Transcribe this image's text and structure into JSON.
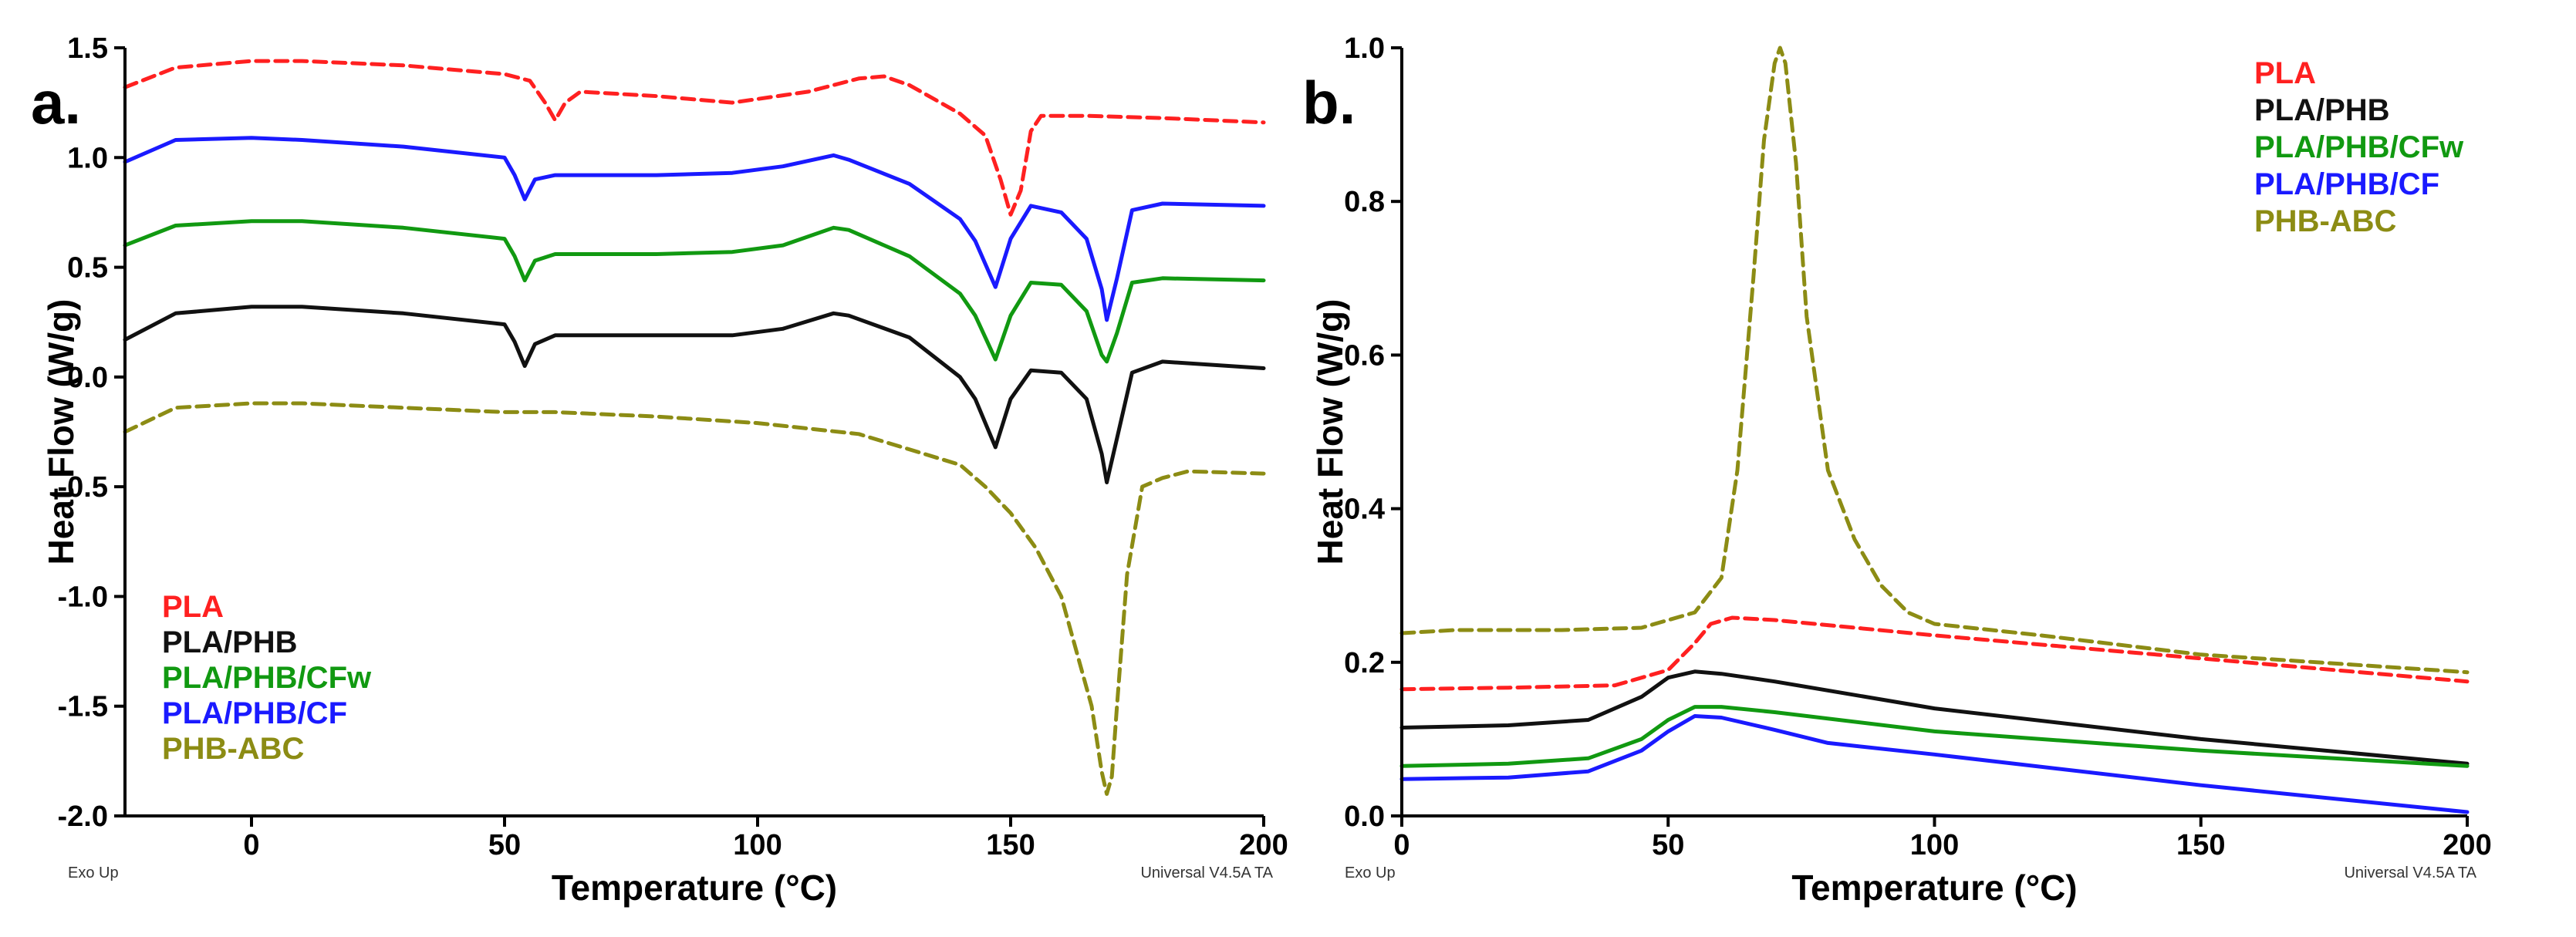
{
  "chart_data": [
    {
      "type": "line",
      "panel_label": "a.",
      "xlabel": "Temperature (°C)",
      "ylabel": "Heat Flow (W/g)",
      "xlim": [
        -25,
        200
      ],
      "ylim": [
        -2.0,
        1.5
      ],
      "xticks": [
        0,
        50,
        100,
        150,
        200
      ],
      "yticks": [
        -2.0,
        -1.5,
        -1.0,
        -0.5,
        0.0,
        0.5,
        1.0,
        1.5
      ],
      "xtick_labels": [
        "0",
        "50",
        "100",
        "150",
        "200"
      ],
      "ytick_labels": [
        "-2.0",
        "-1.5",
        "-1.0",
        "-0.5",
        "0.0",
        "0.5",
        "1.0",
        "1.5"
      ],
      "corner_left": "Exo Up",
      "corner_right": "Universal V4.5A TA",
      "legend_position": "bottom-left",
      "series": [
        {
          "name": "PLA",
          "color": "#ff2020",
          "dash": true,
          "x": [
            -25,
            -15,
            0,
            10,
            30,
            50,
            55,
            58,
            60,
            62,
            65,
            80,
            95,
            110,
            120,
            125,
            130,
            140,
            145,
            148,
            150,
            152,
            154,
            156,
            165,
            180,
            200
          ],
          "y": [
            1.32,
            1.41,
            1.44,
            1.44,
            1.42,
            1.38,
            1.35,
            1.25,
            1.17,
            1.25,
            1.3,
            1.28,
            1.25,
            1.3,
            1.36,
            1.37,
            1.33,
            1.2,
            1.1,
            0.9,
            0.74,
            0.85,
            1.12,
            1.19,
            1.19,
            1.18,
            1.16
          ]
        },
        {
          "name": "PLA/PHB",
          "color": "#111111",
          "dash": false,
          "x": [
            -25,
            -15,
            0,
            10,
            30,
            50,
            52,
            54,
            56,
            60,
            80,
            95,
            105,
            115,
            118,
            130,
            140,
            143,
            147,
            150,
            154,
            160,
            165,
            168,
            169,
            171,
            174,
            180,
            200
          ],
          "y": [
            0.17,
            0.29,
            0.32,
            0.32,
            0.29,
            0.24,
            0.16,
            0.05,
            0.15,
            0.19,
            0.19,
            0.19,
            0.22,
            0.29,
            0.28,
            0.18,
            0.0,
            -0.1,
            -0.32,
            -0.1,
            0.03,
            0.02,
            -0.1,
            -0.35,
            -0.48,
            -0.28,
            0.02,
            0.07,
            0.04
          ]
        },
        {
          "name": "PLA/PHB/CFw",
          "color": "#119911",
          "dash": false,
          "x": [
            -25,
            -15,
            0,
            10,
            30,
            50,
            52,
            54,
            56,
            60,
            80,
            95,
            105,
            115,
            118,
            130,
            140,
            143,
            147,
            150,
            154,
            160,
            165,
            168,
            169,
            171,
            174,
            180,
            200
          ],
          "y": [
            0.6,
            0.69,
            0.71,
            0.71,
            0.68,
            0.63,
            0.55,
            0.44,
            0.53,
            0.56,
            0.56,
            0.57,
            0.6,
            0.68,
            0.67,
            0.55,
            0.38,
            0.28,
            0.08,
            0.28,
            0.43,
            0.42,
            0.3,
            0.1,
            0.07,
            0.2,
            0.43,
            0.45,
            0.44
          ]
        },
        {
          "name": "PLA/PHB/CF",
          "color": "#1a1aff",
          "dash": false,
          "x": [
            -25,
            -15,
            0,
            10,
            30,
            50,
            52,
            54,
            56,
            60,
            80,
            95,
            105,
            115,
            118,
            130,
            140,
            143,
            147,
            150,
            154,
            160,
            165,
            168,
            169,
            171,
            174,
            180,
            200
          ],
          "y": [
            0.98,
            1.08,
            1.09,
            1.08,
            1.05,
            1.0,
            0.92,
            0.81,
            0.9,
            0.92,
            0.92,
            0.93,
            0.96,
            1.01,
            0.99,
            0.88,
            0.72,
            0.62,
            0.41,
            0.63,
            0.78,
            0.75,
            0.63,
            0.4,
            0.26,
            0.45,
            0.76,
            0.79,
            0.78
          ]
        },
        {
          "name": "PHB-ABC",
          "color": "#8c8c14",
          "dash": true,
          "x": [
            -25,
            -15,
            0,
            10,
            30,
            50,
            60,
            80,
            100,
            120,
            140,
            145,
            150,
            155,
            160,
            163,
            166,
            168,
            169,
            170,
            171,
            173,
            176,
            180,
            185,
            200
          ],
          "y": [
            -0.25,
            -0.14,
            -0.12,
            -0.12,
            -0.14,
            -0.16,
            -0.16,
            -0.18,
            -0.21,
            -0.26,
            -0.4,
            -0.5,
            -0.62,
            -0.78,
            -1.0,
            -1.25,
            -1.5,
            -1.8,
            -1.9,
            -1.82,
            -1.5,
            -0.9,
            -0.5,
            -0.46,
            -0.43,
            -0.44
          ]
        }
      ]
    },
    {
      "type": "line",
      "panel_label": "b.",
      "xlabel": "Temperature (°C)",
      "ylabel": "Heat Flow (W/g)",
      "xlim": [
        0,
        200
      ],
      "ylim": [
        0.0,
        1.0
      ],
      "xticks": [
        0,
        50,
        100,
        150,
        200
      ],
      "yticks": [
        0.0,
        0.2,
        0.4,
        0.6,
        0.8,
        1.0
      ],
      "xtick_labels": [
        "0",
        "50",
        "100",
        "150",
        "200"
      ],
      "ytick_labels": [
        "0.0",
        "0.2",
        "0.4",
        "0.6",
        "0.8",
        "1.0"
      ],
      "corner_left": "Exo Up",
      "corner_right": "Universal V4.5A TA",
      "legend_position": "top-right",
      "series": [
        {
          "name": "PLA",
          "color": "#ff2020",
          "dash": true,
          "x": [
            0,
            20,
            40,
            50,
            55,
            58,
            62,
            70,
            100,
            150,
            200
          ],
          "y": [
            0.165,
            0.167,
            0.17,
            0.19,
            0.225,
            0.25,
            0.258,
            0.255,
            0.235,
            0.205,
            0.175
          ]
        },
        {
          "name": "PLA/PHB",
          "color": "#111111",
          "dash": false,
          "x": [
            0,
            20,
            35,
            45,
            50,
            55,
            60,
            70,
            100,
            150,
            200
          ],
          "y": [
            0.115,
            0.118,
            0.125,
            0.155,
            0.18,
            0.188,
            0.185,
            0.175,
            0.14,
            0.1,
            0.068
          ]
        },
        {
          "name": "PLA/PHB/CFw",
          "color": "#119911",
          "dash": false,
          "x": [
            0,
            20,
            35,
            45,
            50,
            55,
            60,
            70,
            100,
            150,
            200
          ],
          "y": [
            0.065,
            0.068,
            0.075,
            0.1,
            0.125,
            0.142,
            0.142,
            0.135,
            0.11,
            0.085,
            0.065
          ]
        },
        {
          "name": "PLA/PHB/CF",
          "color": "#1a1aff",
          "dash": false,
          "x": [
            0,
            20,
            35,
            45,
            50,
            55,
            60,
            70,
            80,
            100,
            150,
            200
          ],
          "y": [
            0.048,
            0.05,
            0.058,
            0.085,
            0.11,
            0.13,
            0.128,
            0.112,
            0.095,
            0.08,
            0.04,
            0.005
          ]
        },
        {
          "name": "PHB-ABC",
          "color": "#8c8c14",
          "dash": true,
          "x": [
            0,
            10,
            30,
            45,
            55,
            60,
            63,
            66,
            68,
            70,
            71,
            72,
            74,
            76,
            80,
            85,
            90,
            95,
            100,
            120,
            150,
            200
          ],
          "y": [
            0.238,
            0.242,
            0.242,
            0.245,
            0.265,
            0.31,
            0.45,
            0.7,
            0.88,
            0.98,
            1.0,
            0.98,
            0.85,
            0.65,
            0.45,
            0.36,
            0.3,
            0.265,
            0.25,
            0.235,
            0.21,
            0.187
          ]
        }
      ]
    }
  ]
}
